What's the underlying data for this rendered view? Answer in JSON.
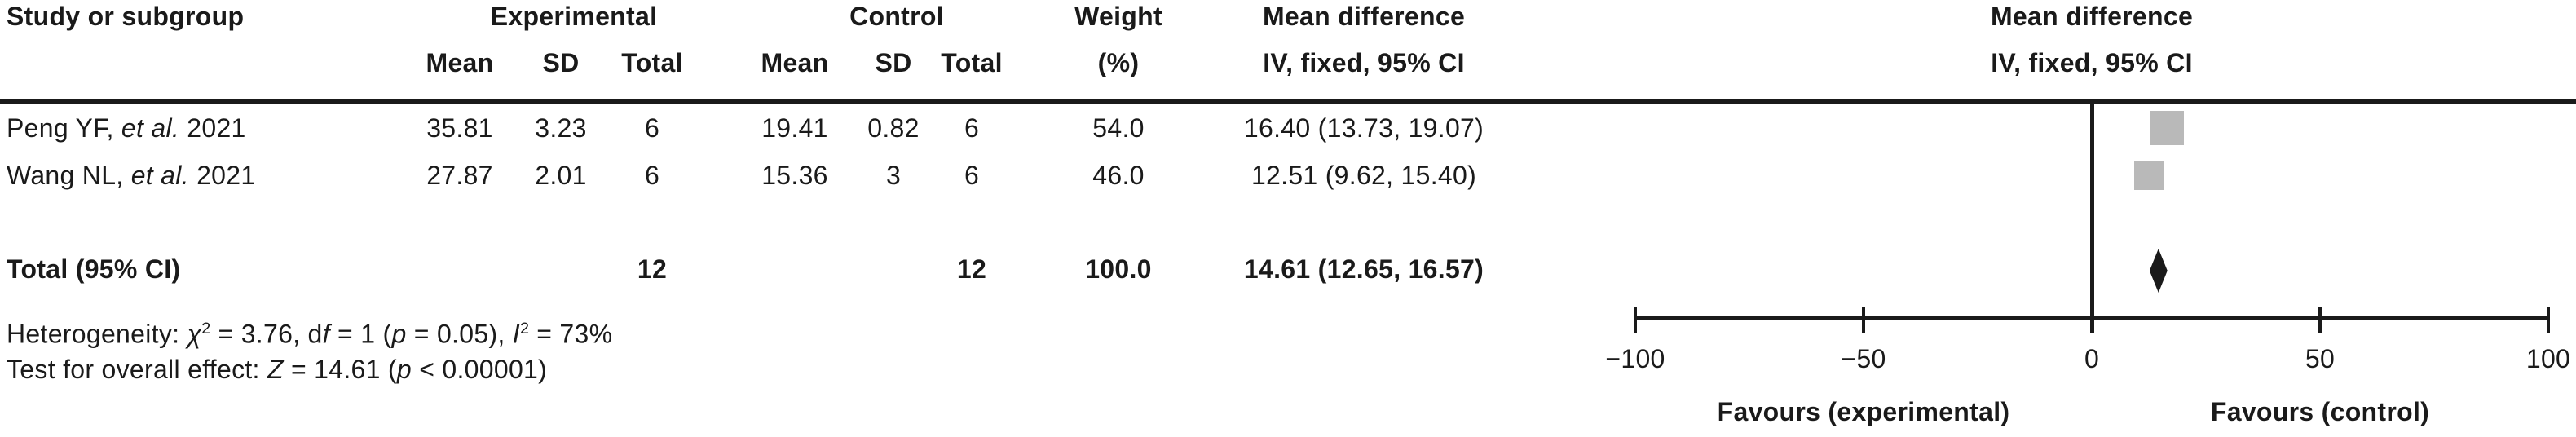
{
  "header": {
    "study_col": "Study or subgroup",
    "experimental": "Experimental",
    "control": "Control",
    "weight_line1": "Weight",
    "weight_line2": "(%)",
    "mean": "Mean",
    "sd": "SD",
    "total": "Total",
    "md_line1": "Mean difference",
    "md_line2": "IV, fixed, 95% CI"
  },
  "studies": [
    {
      "name_pre": "Peng YF, ",
      "name_italic": "et al.",
      "name_post": " 2021",
      "exp_mean": "35.81",
      "exp_sd": "3.23",
      "exp_total": "6",
      "ctrl_mean": "19.41",
      "ctrl_sd": "0.82",
      "ctrl_total": "6",
      "weight": "54.0",
      "md_ci": "16.40 (13.73, 19.07)"
    },
    {
      "name_pre": "Wang NL, ",
      "name_italic": "et al.",
      "name_post": " 2021",
      "exp_mean": "27.87",
      "exp_sd": "2.01",
      "exp_total": "6",
      "ctrl_mean": "15.36",
      "ctrl_sd": "3",
      "ctrl_total": "6",
      "weight": "46.0",
      "md_ci": "12.51 (9.62, 15.40)"
    }
  ],
  "total_row": {
    "label": "Total (95% CI)",
    "exp_total": "12",
    "ctrl_total": "12",
    "weight": "100.0",
    "md_ci": "14.61 (12.65, 16.57)"
  },
  "footer": {
    "het_pre": "Heterogeneity: ",
    "het_chi": "χ",
    "het_chi_sup": "2",
    "het_mid1": " = 3.76, d",
    "het_f": "f",
    "het_mid2": " = 1 (",
    "het_p": "p",
    "het_mid3": " = 0.05), ",
    "het_I": "I",
    "het_I_sup": "2",
    "het_end": " = 73%",
    "test_pre": "Test for overall effect: ",
    "test_Z": "Z",
    "test_mid": " = 14.61 (",
    "test_p": "p",
    "test_end": " < 0.00001)"
  },
  "axis": {
    "labels": [
      "−100",
      "−50",
      "0",
      "50",
      "100"
    ],
    "favours_left": "Favours (experimental)",
    "favours_right": "Favours (control)"
  },
  "chart_data": {
    "type": "forest",
    "effect_measure": "Mean difference, IV, fixed, 95% CI",
    "model": "fixed",
    "xlim": [
      -100,
      100
    ],
    "ticks": [
      -100,
      -50,
      0,
      50,
      100
    ],
    "studies": [
      {
        "name": "Peng YF, et al. 2021",
        "md": 16.4,
        "ci_low": 13.73,
        "ci_high": 19.07,
        "weight_pct": 54.0
      },
      {
        "name": "Wang NL, et al. 2021",
        "md": 12.51,
        "ci_low": 9.62,
        "ci_high": 15.4,
        "weight_pct": 46.0
      }
    ],
    "total": {
      "md": 14.61,
      "ci_low": 12.65,
      "ci_high": 16.57,
      "weight_pct": 100.0
    },
    "heterogeneity": {
      "chi2": 3.76,
      "df": 1,
      "p": 0.05,
      "I2_pct": 73
    },
    "overall_effect": {
      "Z": 14.61,
      "p": "< 0.00001"
    },
    "favours_left": "Favours (experimental)",
    "favours_right": "Favours (control)"
  }
}
